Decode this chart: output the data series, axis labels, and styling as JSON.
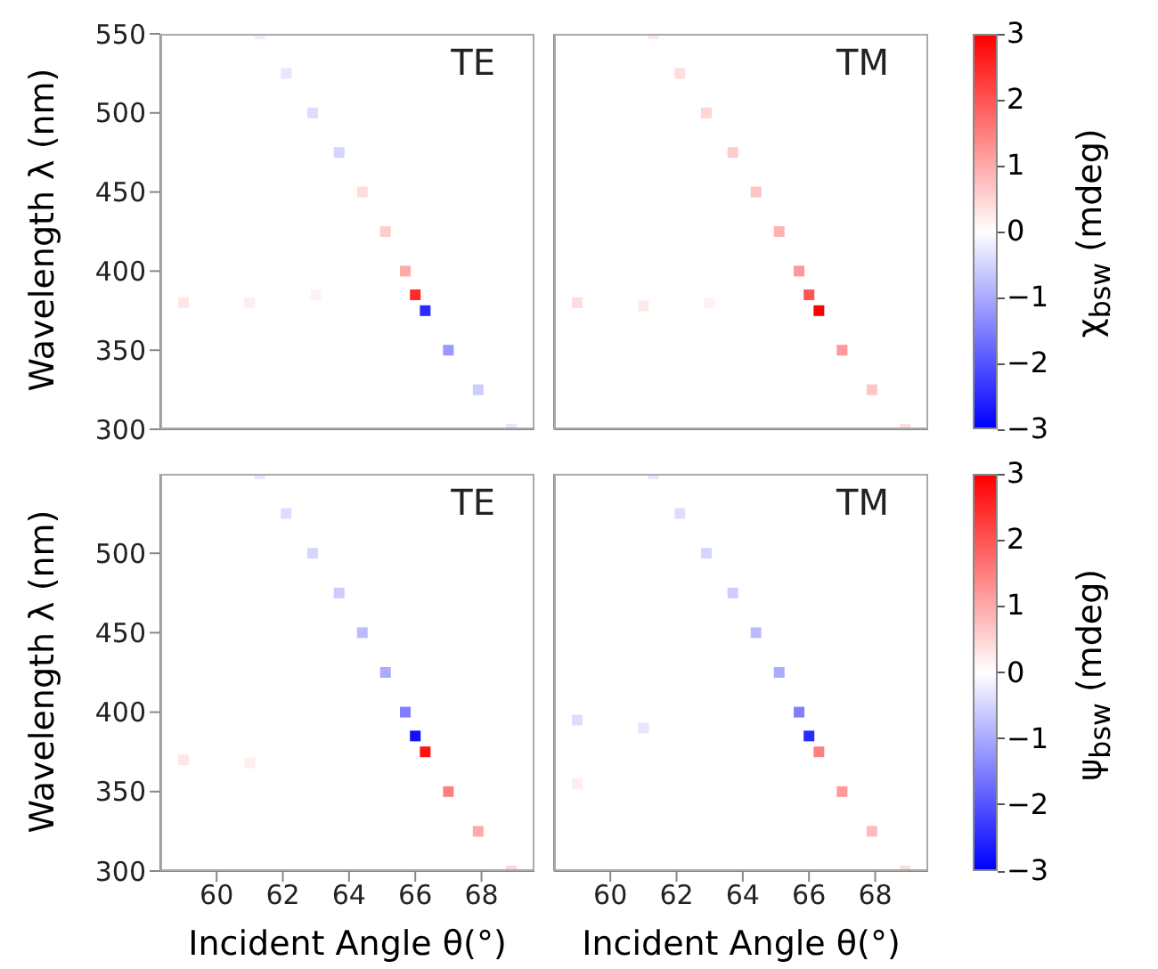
{
  "chart_data": [
    {
      "type": "scatter",
      "marker": "square",
      "annotations": [
        "TE"
      ],
      "ylabel": "Wavelength λ (nm)",
      "tick_labels": "y",
      "xlim": [
        58.3,
        69.6
      ],
      "xticks": [
        60,
        62,
        64,
        66,
        68
      ],
      "ylim": [
        300,
        550
      ],
      "yticks": [
        300,
        350,
        400,
        450,
        500,
        550
      ],
      "series": [
        {
          "x": [
            61.3,
            62.1,
            62.9,
            63.7,
            64.4,
            65.1,
            65.7,
            66.0,
            66.3,
            67.0,
            67.9,
            68.9,
            59.0,
            61.0,
            63.0
          ],
          "values": [
            550,
            525,
            500,
            475,
            450,
            425,
            400,
            385,
            375,
            350,
            325,
            300,
            380,
            380,
            385
          ],
          "colors": [
            "#eeeeff",
            "#e6e6ff",
            "#ddddff",
            "#d5d5ff",
            "#ffdddd",
            "#ffcccc",
            "#ffaaaa",
            "#ff2b2b",
            "#2b2bff",
            "#9999ff",
            "#ccccff",
            "#e6e6ff",
            "#ffe6e6",
            "#ffeeee",
            "#fff2f2"
          ]
        }
      ]
    },
    {
      "type": "scatter",
      "marker": "square",
      "annotations": [
        "TM"
      ],
      "tick_labels": false,
      "xlim": [
        58.3,
        69.6
      ],
      "xticks": [
        60,
        62,
        64,
        66,
        68
      ],
      "ylim": [
        300,
        550
      ],
      "yticks": [
        300,
        350,
        400,
        450,
        500,
        550
      ],
      "clim": [
        -3,
        3
      ],
      "cticks": [
        -3,
        -2,
        -1,
        0,
        1,
        2,
        3
      ],
      "clabel": "χ$_{bsw}$ (mdeg)",
      "series": [
        {
          "x": [
            61.3,
            62.1,
            62.9,
            63.7,
            64.4,
            65.1,
            65.7,
            66.0,
            66.3,
            67.0,
            67.9,
            68.9,
            59.0,
            61.0,
            63.0
          ],
          "values": [
            550,
            525,
            500,
            475,
            450,
            425,
            400,
            385,
            375,
            350,
            325,
            300,
            380,
            378,
            380
          ],
          "cvalues": [
            0.3,
            0.4,
            0.5,
            0.6,
            0.7,
            0.9,
            1.2,
            2.0,
            3.0,
            1.2,
            0.7,
            0.4,
            0.4,
            0.25,
            0.15
          ]
        }
      ]
    },
    {
      "type": "scatter",
      "marker": "square",
      "annotations": [
        "TE"
      ],
      "ylabel": "Wavelength λ (nm)",
      "xlabel": "Incident Angle θ(°)",
      "xlim": [
        58.3,
        69.6
      ],
      "xticks": [
        60,
        62,
        64,
        66,
        68
      ],
      "ylim": [
        300,
        550
      ],
      "yticks": [
        300,
        350,
        400,
        450,
        500
      ],
      "series": [
        {
          "x": [
            61.3,
            62.1,
            62.9,
            63.7,
            64.4,
            65.1,
            65.7,
            66.0,
            66.3,
            67.0,
            67.9,
            68.9,
            59.0,
            61.0
          ],
          "values": [
            550,
            525,
            500,
            475,
            450,
            425,
            400,
            385,
            375,
            350,
            325,
            300,
            370,
            368
          ],
          "colors": [
            "#e6e6ff",
            "#ddddff",
            "#d5d5ff",
            "#ccccff",
            "#bbbbff",
            "#aaaaff",
            "#8080ff",
            "#1111ff",
            "#ff1111",
            "#ff8080",
            "#ffaaaa",
            "#ffd5d5",
            "#ffe6e6",
            "#ffeeee"
          ]
        }
      ]
    },
    {
      "type": "scatter",
      "marker": "square",
      "annotations": [
        "TM"
      ],
      "xlabel": "Incident Angle θ(°)",
      "tick_labels": "x",
      "xlim": [
        58.3,
        69.6
      ],
      "xticks": [
        60,
        62,
        64,
        66,
        68
      ],
      "ylim": [
        300,
        550
      ],
      "yticks": [
        300,
        350,
        400,
        450,
        500
      ],
      "clim": [
        -3,
        3
      ],
      "cticks": [
        -3,
        -2,
        -1,
        0,
        1,
        2,
        3
      ],
      "clabel": "ψ$_{bsw}$ (mdeg)",
      "series": [
        {
          "x": [
            61.3,
            62.1,
            62.9,
            63.7,
            64.4,
            65.1,
            65.7,
            66.0,
            66.3,
            67.0,
            67.9,
            68.9,
            59.0,
            61.0,
            59.0
          ],
          "values": [
            550,
            525,
            500,
            475,
            450,
            425,
            400,
            385,
            375,
            350,
            325,
            300,
            395,
            390,
            355
          ],
          "cvalues": [
            -0.3,
            -0.4,
            -0.5,
            -0.6,
            -0.8,
            -1.0,
            -1.5,
            -2.5,
            1.5,
            1.2,
            0.8,
            0.4,
            -0.4,
            -0.3,
            0.2
          ]
        }
      ]
    }
  ]
}
